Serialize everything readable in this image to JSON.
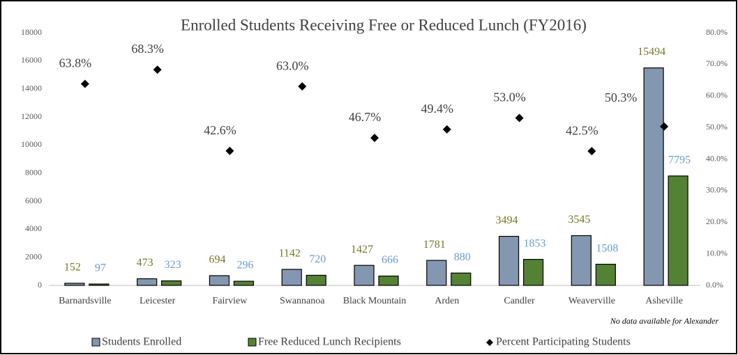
{
  "chart_data": {
    "type": "bar",
    "title": "Enrolled Students Receiving Free or Reduced Lunch (FY2016)",
    "categories": [
      "Barnardsville",
      "Leicester",
      "Fairview",
      "Swannanoa",
      "Black Mountain",
      "Arden",
      "Candler",
      "Weaverville",
      "Asheville"
    ],
    "series": [
      {
        "name": "Students Enrolled",
        "type": "bar",
        "color": "#8497b0",
        "label_color": "#76782a",
        "values": [
          152,
          473,
          694,
          1142,
          1427,
          1781,
          3494,
          3545,
          15494
        ]
      },
      {
        "name": "Free Reduced Lunch Recipients",
        "type": "bar",
        "color": "#548235",
        "label_color": "#6a9ccc",
        "values": [
          97,
          323,
          296,
          720,
          666,
          880,
          1853,
          1508,
          7795
        ]
      },
      {
        "name": "Percent Participating Students",
        "type": "scatter",
        "axis": "y2",
        "color": "#000000",
        "values": [
          63.8,
          68.3,
          42.6,
          63.0,
          46.7,
          49.4,
          53.0,
          42.5,
          50.3
        ],
        "value_labels": [
          "63.8%",
          "68.3%",
          "42.6%",
          "63.0%",
          "46.7%",
          "49.4%",
          "53.0%",
          "42.5%",
          "50.3%"
        ]
      }
    ],
    "ylim": [
      0,
      18000
    ],
    "yticks": [
      0,
      2000,
      4000,
      6000,
      8000,
      10000,
      12000,
      14000,
      16000,
      18000
    ],
    "y2lim": [
      0,
      80
    ],
    "y2ticks": [
      {
        "value": 0,
        "label": "0.0%"
      },
      {
        "value": 10,
        "label": "10.0%"
      },
      {
        "value": 20,
        "label": "20.0%"
      },
      {
        "value": 30,
        "label": "30.0%"
      },
      {
        "value": 40,
        "label": "40.0%"
      },
      {
        "value": 50,
        "label": "50.0%"
      },
      {
        "value": 60,
        "label": "60.0%"
      },
      {
        "value": 70,
        "label": "70.0%"
      },
      {
        "value": 80,
        "label": "80.0%"
      }
    ],
    "grid": false,
    "legend": "bottom",
    "annotations": [
      "No data available for Alexander"
    ]
  }
}
